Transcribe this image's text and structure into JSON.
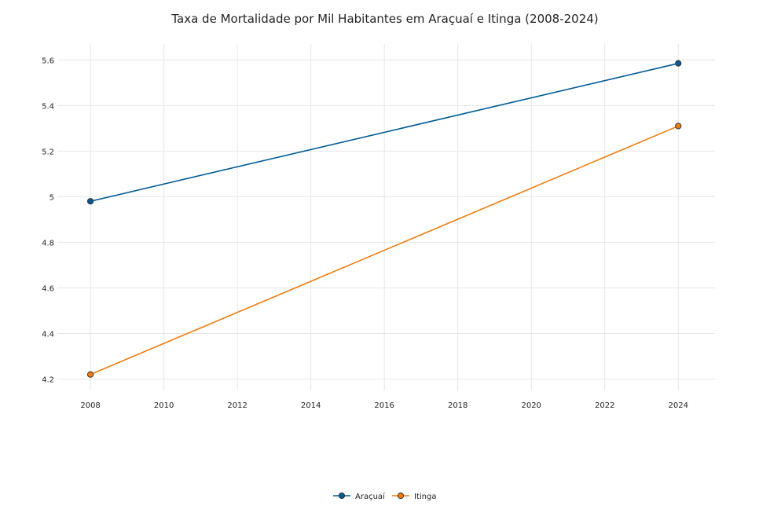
{
  "chart_data": {
    "type": "line",
    "title": "Taxa de Mortalidade por Mil Habitantes em Araçuaí e Itinga (2008-2024)",
    "xlabel": "",
    "ylabel": "",
    "x": [
      2008,
      2024
    ],
    "xticks": [
      "2008",
      "2010",
      "2012",
      "2014",
      "2016",
      "2018",
      "2020",
      "2022",
      "2024"
    ],
    "yticks": [
      "4.2",
      "4.4",
      "4.6",
      "4.8",
      "5",
      "5.2",
      "5.4",
      "5.6"
    ],
    "xlim": [
      2007.1,
      2025
    ],
    "ylim": [
      4.15,
      5.67
    ],
    "grid": true,
    "legend_position": "bottom-center",
    "series": [
      {
        "name": "Araçuaí",
        "color": "#005b96",
        "values": [
          4.98,
          5.585
        ]
      },
      {
        "name": "Itinga",
        "color": "#f07c0e",
        "values": [
          4.22,
          5.31
        ]
      }
    ]
  }
}
